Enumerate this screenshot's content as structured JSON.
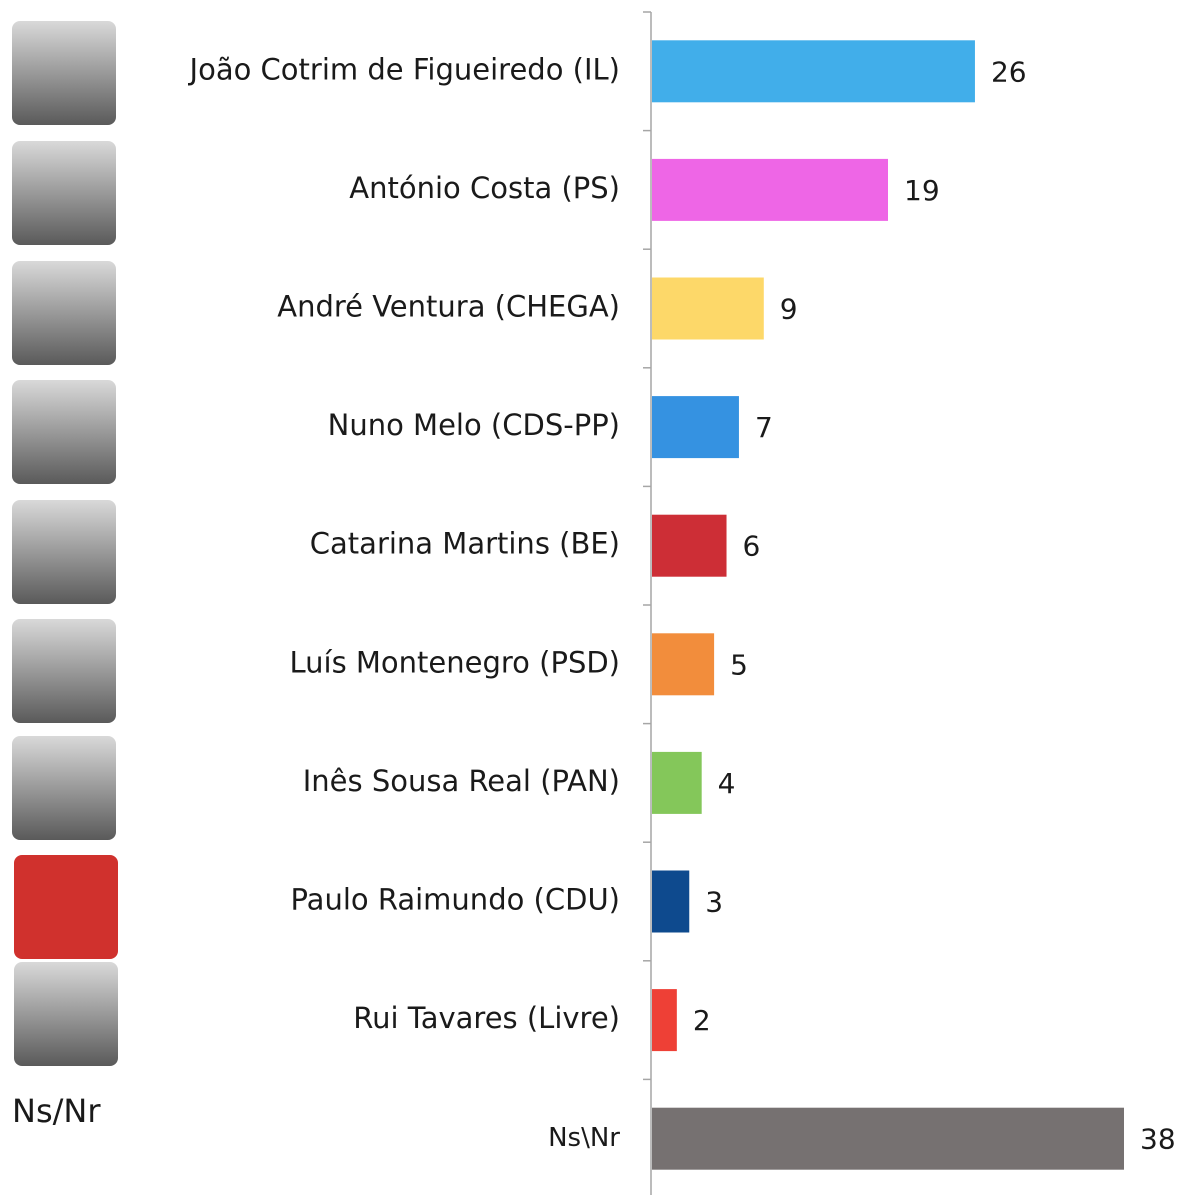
{
  "chart_data": {
    "type": "bar",
    "orientation": "horizontal",
    "categories": [
      "João Cotrim de Figueiredo (IL)",
      "António Costa (PS)",
      "André Ventura (CHEGA)",
      "Nuno Melo (CDS-PP)",
      "Catarina Martins (BE)",
      "Luís Montenegro (PSD)",
      "Inês Sousa Real (PAN)",
      "Paulo Raimundo (CDU)",
      "Rui Tavares (Livre)",
      "Ns\\Nr"
    ],
    "values": [
      26,
      19,
      9,
      7,
      6,
      5,
      4,
      3,
      2,
      38
    ],
    "colors": [
      "#41aeea",
      "#ee66e6",
      "#fdd869",
      "#3592e1",
      "#cd2e36",
      "#f28d3c",
      "#84c75a",
      "#0e4a8e",
      "#ee4036",
      "#767171"
    ]
  },
  "side_label": "Ns/Nr"
}
